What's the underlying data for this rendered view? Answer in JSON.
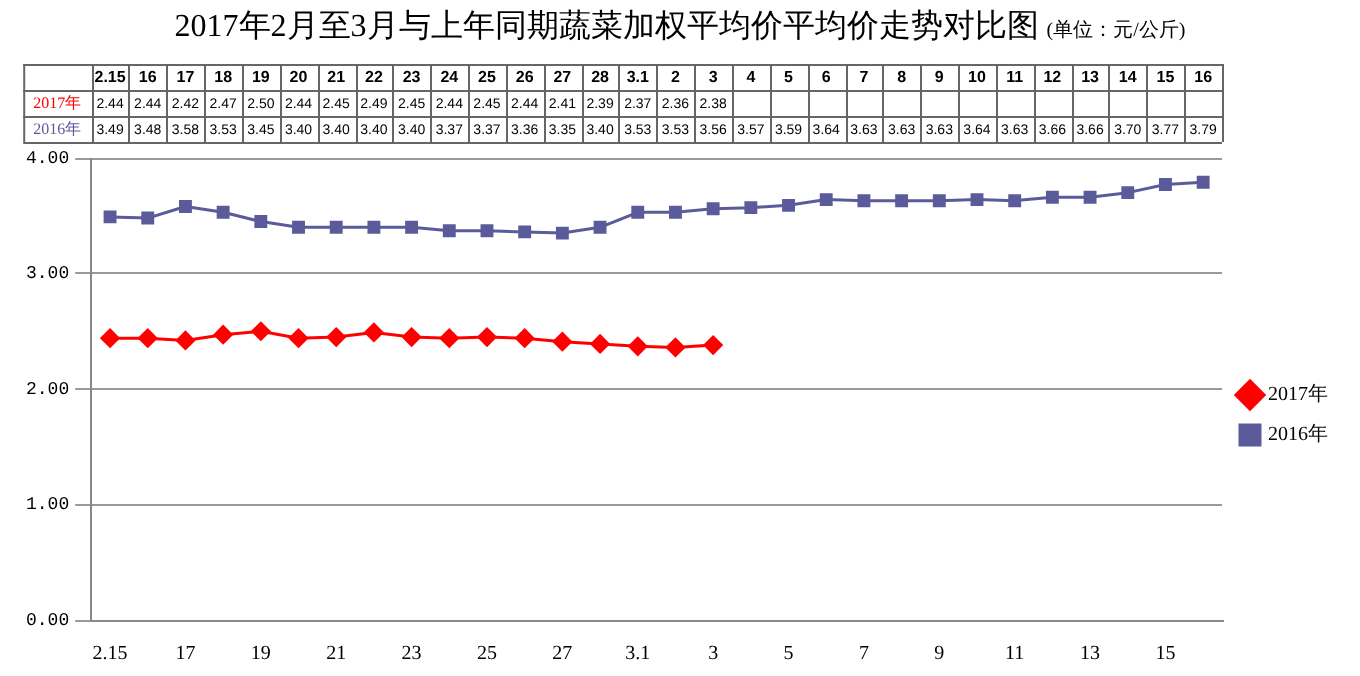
{
  "chart_data": {
    "type": "line",
    "title": "2017年2月至3月与上年同期蔬菜加权平均价平均价走势对比图",
    "subtitle": "(单位：元/公斤)",
    "categories": [
      "2.15",
      "16",
      "17",
      "18",
      "19",
      "20",
      "21",
      "22",
      "23",
      "24",
      "25",
      "26",
      "27",
      "28",
      "3.1",
      "2",
      "3",
      "4",
      "5",
      "6",
      "7",
      "8",
      "9",
      "10",
      "11",
      "12",
      "13",
      "14",
      "15",
      "16"
    ],
    "series": [
      {
        "name": "2017年",
        "color": "#ff0000",
        "marker": "diamond",
        "values": [
          2.44,
          2.44,
          2.42,
          2.47,
          2.5,
          2.44,
          2.45,
          2.49,
          2.45,
          2.44,
          2.45,
          2.44,
          2.41,
          2.39,
          2.37,
          2.36,
          2.38,
          null,
          null,
          null,
          null,
          null,
          null,
          null,
          null,
          null,
          null,
          null,
          null,
          null
        ],
        "value_labels": [
          "2.44",
          "2.44",
          "2.42",
          "2.47",
          "2.50",
          "2.44",
          "2.45",
          "2.49",
          "2.45",
          "2.44",
          "2.45",
          "2.44",
          "2.41",
          "2.39",
          "2.37",
          "2.36",
          "2.38",
          null,
          null,
          null,
          null,
          null,
          null,
          null,
          null,
          null,
          null,
          null,
          null,
          null
        ]
      },
      {
        "name": "2016年",
        "color": "#5b5b9b",
        "marker": "square",
        "values": [
          3.49,
          3.48,
          3.58,
          3.53,
          3.45,
          3.4,
          3.4,
          3.4,
          3.4,
          3.37,
          3.37,
          3.36,
          3.35,
          3.4,
          3.53,
          3.53,
          3.56,
          3.57,
          3.59,
          3.64,
          3.63,
          3.63,
          3.63,
          3.64,
          3.63,
          3.66,
          3.66,
          3.7,
          3.77,
          3.79
        ],
        "value_labels": [
          "3.49",
          "3.48",
          "3.58",
          "3.53",
          "3.45",
          "3.40",
          "3.40",
          "3.40",
          "3.40",
          "3.37",
          "3.37",
          "3.36",
          "3.35",
          "3.40",
          "3.53",
          "3.53",
          "3.56",
          "3.57",
          "3.59",
          "3.64",
          "3.63",
          "3.63",
          "3.63",
          "3.64",
          "3.63",
          "3.66",
          "3.66",
          "3.70",
          "3.77",
          "3.79"
        ]
      }
    ],
    "ylim": [
      0,
      4
    ],
    "yticks": [
      {
        "value": 0,
        "label": "0.00"
      },
      {
        "value": 1,
        "label": "1.00"
      },
      {
        "value": 2,
        "label": "2.00"
      },
      {
        "value": 3,
        "label": "3.00"
      },
      {
        "value": 4,
        "label": "4.00"
      }
    ],
    "grid": "y",
    "legend": "right",
    "line_style": "solid"
  }
}
